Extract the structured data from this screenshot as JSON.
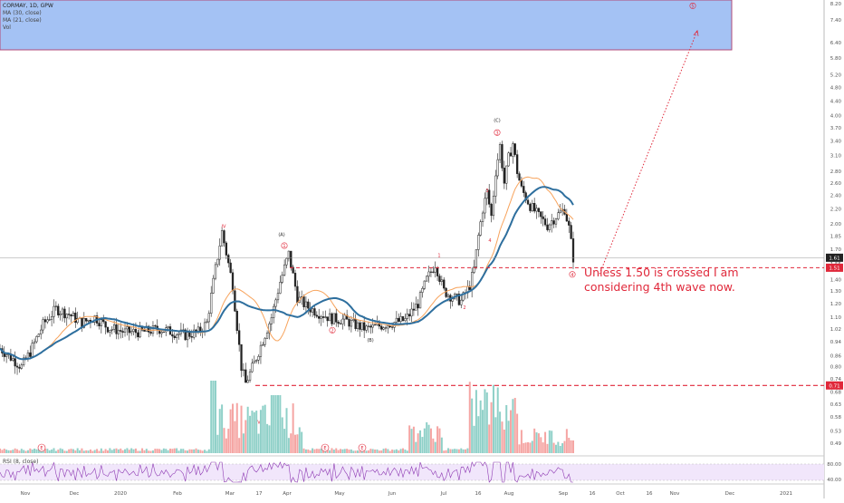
{
  "legend": {
    "title": "CORMAY, 1D, GPW",
    "ma30": "MA (30, close)",
    "ma21": "MA (21, close)",
    "vol": "Vol"
  },
  "rsi_label": "RSI (8, close)",
  "note": "Unless 1.50 is crossed I am considering 4th wave now.",
  "colors": {
    "up": "#26a69a",
    "down": "#ef5350",
    "vol_up": "#8fd0c8",
    "vol_down": "#f5a5a3",
    "ma30": "#2e6f9e",
    "ma21": "#f7a35c",
    "projection": "#e0283a",
    "zone": "#a4c2f4",
    "rsi_band": "#f1e6fb",
    "rsi_line": "#8e3ab3"
  },
  "chart_data": {
    "type": "candlestick",
    "price_ticks": [
      "8.20",
      "7.40",
      "6.40",
      "5.80",
      "5.20",
      "4.80",
      "4.40",
      "4.00",
      "3.70",
      "3.40",
      "3.10",
      "2.80",
      "2.60",
      "2.40",
      "2.20",
      "2.00",
      "1.85",
      "1.70",
      "1.55",
      "1.40",
      "1.30",
      "1.20",
      "1.10",
      "1.02",
      "0.94",
      "0.86",
      "0.80",
      "0.74",
      "0.68",
      "0.63",
      "0.58",
      "0.53",
      "0.49"
    ],
    "price_range": [
      0.46,
      8.4
    ],
    "scale": "log",
    "x_ticks": [
      "Nov",
      "Dec",
      "2020",
      "Feb",
      "Mar",
      "17",
      "Apr",
      "May",
      "Jun",
      "Jul",
      "16",
      "Aug",
      "Sep",
      "16",
      "Oct",
      "16",
      "Nov",
      "Dec",
      "2021"
    ],
    "last_price": "1.61",
    "level_upper": "1.51",
    "level_lower": "0.71",
    "wave_labels": [
      {
        "text": "IV",
        "price": 1.95
      },
      {
        "text": "V",
        "price": 0.555
      },
      {
        "text": "(A)",
        "price": 1.85
      },
      {
        "text": "1",
        "price": 1.72
      },
      {
        "text": "2",
        "price": 1.0
      },
      {
        "text": "(B)",
        "price": 0.94
      },
      {
        "text": "1",
        "price": 1.62
      },
      {
        "text": "2",
        "price": 1.16
      },
      {
        "text": "3",
        "price": 2.45
      },
      {
        "text": "4",
        "price": 1.78
      },
      {
        "text": "(C)",
        "price": 3.85
      },
      {
        "text": "3",
        "price": 3.55
      },
      {
        "text": "4",
        "price": 1.43
      },
      {
        "text": "5",
        "price": 8.0
      }
    ],
    "event_markers": [
      "E",
      "E",
      "E"
    ],
    "rsi_ticks": [
      "80.00",
      "40.00"
    ],
    "projection_target": 6.9
  }
}
